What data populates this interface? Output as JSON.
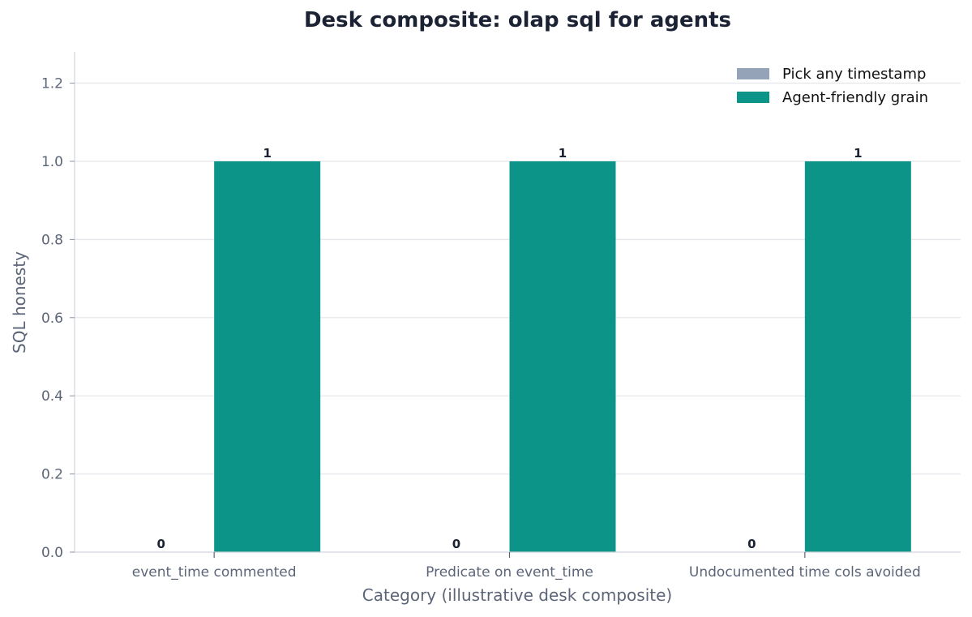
{
  "chart_data": {
    "type": "bar",
    "title": "Desk composite: olap sql for agents",
    "xlabel": "Category (illustrative desk composite)",
    "ylabel": "SQL honesty",
    "categories": [
      "event_time commented",
      "Predicate on event_time",
      "Undocumented time cols avoided"
    ],
    "series": [
      {
        "name": "Pick any timestamp",
        "values": [
          0,
          0,
          0
        ],
        "color": "#94a3b8"
      },
      {
        "name": "Agent-friendly grain",
        "values": [
          1,
          1,
          1
        ],
        "color": "#0d9488"
      }
    ],
    "ylim": [
      0,
      1.28
    ],
    "yticks": [
      "0.0",
      "0.2",
      "0.4",
      "0.6",
      "0.8",
      "1.0",
      "1.2"
    ],
    "grid": true,
    "legend_position": "top-right"
  }
}
